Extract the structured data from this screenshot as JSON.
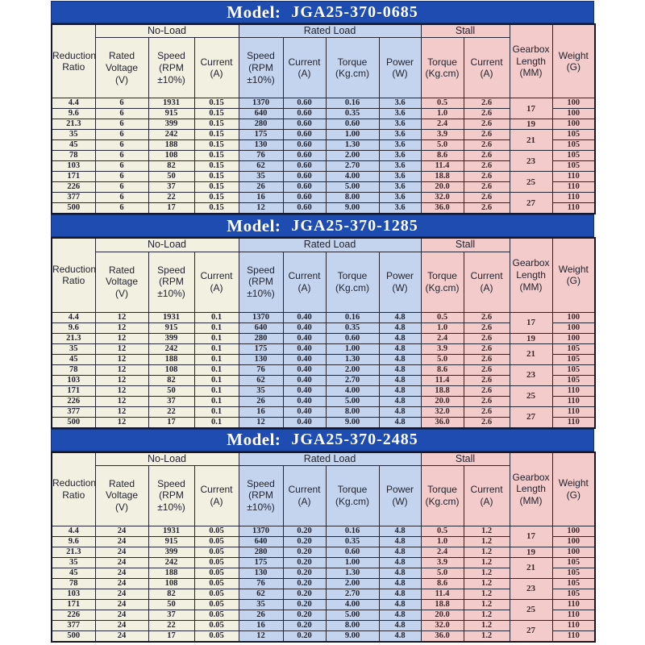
{
  "colors": {
    "title_bar_blue": "#1f4cb0",
    "title_text": "#ffffff",
    "no_load_cream": "#f1f0e1",
    "rated_load_blue": "#c4d4ee",
    "stall_pink": "#f3cbca",
    "grid_border": "#262633",
    "data_text": "#23242f"
  },
  "header": {
    "reduction_ratio": "Reduction\nRatio",
    "groups": {
      "no_load": "No-Load",
      "rated_load": "Rated Load",
      "stall": "Stall"
    },
    "sub": {
      "rated_voltage": "Rated\nVoltage\n(V)",
      "speed": "Speed\n(RPM\n±10%)",
      "current": "Current\n(A)",
      "torque": "Torque\n(Kg.cm)",
      "power": "Power\n(W)"
    },
    "gearbox": "Gearbox\nLength\n(MM)",
    "weight": "Weight\n(G)"
  },
  "gearbox_spans": [
    {
      "value": "17",
      "rows": 2
    },
    {
      "value": "19",
      "rows": 1
    },
    {
      "value": "21",
      "rows": 2
    },
    {
      "value": "23",
      "rows": 2
    },
    {
      "value": "25",
      "rows": 2
    },
    {
      "value": "27",
      "rows": 2
    }
  ],
  "tables": [
    {
      "model_label": "Model:",
      "model_number": "JGA25-370-0685",
      "rows": [
        [
          "4.4",
          "6",
          "1931",
          "0.15",
          "1370",
          "0.60",
          "0.16",
          "3.6",
          "0.5",
          "2.6",
          "100"
        ],
        [
          "9.6",
          "6",
          "915",
          "0.15",
          "640",
          "0.60",
          "0.35",
          "3.6",
          "1.0",
          "2.6",
          "100"
        ],
        [
          "21.3",
          "6",
          "399",
          "0.15",
          "280",
          "0.60",
          "0.60",
          "3.6",
          "2.4",
          "2.6",
          "100"
        ],
        [
          "35",
          "6",
          "242",
          "0.15",
          "175",
          "0.60",
          "1.00",
          "3.6",
          "3.9",
          "2.6",
          "105"
        ],
        [
          "45",
          "6",
          "188",
          "0.15",
          "130",
          "0.60",
          "1.30",
          "3.6",
          "5.0",
          "2.6",
          "105"
        ],
        [
          "78",
          "6",
          "108",
          "0.15",
          "76",
          "0.60",
          "2.00",
          "3.6",
          "8.6",
          "2.6",
          "105"
        ],
        [
          "103",
          "6",
          "82",
          "0.15",
          "62",
          "0.60",
          "2.70",
          "3.6",
          "11.4",
          "2.6",
          "105"
        ],
        [
          "171",
          "6",
          "50",
          "0.15",
          "35",
          "0.60",
          "4.00",
          "3.6",
          "18.8",
          "2.6",
          "110"
        ],
        [
          "226",
          "6",
          "37",
          "0.15",
          "26",
          "0.60",
          "5.00",
          "3.6",
          "20.0",
          "2.6",
          "110"
        ],
        [
          "377",
          "6",
          "22",
          "0.15",
          "16",
          "0.60",
          "8.00",
          "3.6",
          "32.0",
          "2.6",
          "110"
        ],
        [
          "500",
          "6",
          "17",
          "0.15",
          "12",
          "0.60",
          "9.00",
          "3.6",
          "36.0",
          "2.6",
          "110"
        ]
      ]
    },
    {
      "model_label": "Model:",
      "model_number": "JGA25-370-1285",
      "rows": [
        [
          "4.4",
          "12",
          "1931",
          "0.1",
          "1370",
          "0.40",
          "0.16",
          "4.8",
          "0.5",
          "2.6",
          "100"
        ],
        [
          "9.6",
          "12",
          "915",
          "0.1",
          "640",
          "0.40",
          "0.35",
          "4.8",
          "1.0",
          "2.6",
          "100"
        ],
        [
          "21.3",
          "12",
          "399",
          "0.1",
          "280",
          "0.40",
          "0.60",
          "4.8",
          "2.4",
          "2.6",
          "100"
        ],
        [
          "35",
          "12",
          "242",
          "0.1",
          "175",
          "0.40",
          "1.00",
          "4.8",
          "3.9",
          "2.6",
          "105"
        ],
        [
          "45",
          "12",
          "188",
          "0.1",
          "130",
          "0.40",
          "1.30",
          "4.8",
          "5.0",
          "2.6",
          "105"
        ],
        [
          "78",
          "12",
          "108",
          "0.1",
          "76",
          "0.40",
          "2.00",
          "4.8",
          "8.6",
          "2.6",
          "105"
        ],
        [
          "103",
          "12",
          "82",
          "0.1",
          "62",
          "0.40",
          "2.70",
          "4.8",
          "11.4",
          "2.6",
          "105"
        ],
        [
          "171",
          "12",
          "50",
          "0.1",
          "35",
          "0.40",
          "4.00",
          "4.8",
          "18.8",
          "2.6",
          "110"
        ],
        [
          "226",
          "12",
          "37",
          "0.1",
          "26",
          "0.40",
          "5.00",
          "4.8",
          "20.0",
          "2.6",
          "110"
        ],
        [
          "377",
          "12",
          "22",
          "0.1",
          "16",
          "0.40",
          "8.00",
          "4.8",
          "32.0",
          "2.6",
          "110"
        ],
        [
          "500",
          "12",
          "17",
          "0.1",
          "12",
          "0.40",
          "9.00",
          "4.8",
          "36.0",
          "2.6",
          "110"
        ]
      ]
    },
    {
      "model_label": "Model:",
      "model_number": "JGA25-370-2485",
      "rows": [
        [
          "4.4",
          "24",
          "1931",
          "0.05",
          "1370",
          "0.20",
          "0.16",
          "4.8",
          "0.5",
          "1.2",
          "100"
        ],
        [
          "9.6",
          "24",
          "915",
          "0.05",
          "640",
          "0.20",
          "0.35",
          "4.8",
          "1.0",
          "1.2",
          "100"
        ],
        [
          "21.3",
          "24",
          "399",
          "0.05",
          "280",
          "0.20",
          "0.60",
          "4.8",
          "2.4",
          "1.2",
          "100"
        ],
        [
          "35",
          "24",
          "242",
          "0.05",
          "175",
          "0.20",
          "1.00",
          "4.8",
          "3.9",
          "1.2",
          "105"
        ],
        [
          "45",
          "24",
          "188",
          "0.05",
          "130",
          "0.20",
          "1.30",
          "4.8",
          "5.0",
          "1.2",
          "105"
        ],
        [
          "78",
          "24",
          "108",
          "0.05",
          "76",
          "0.20",
          "2.00",
          "4.8",
          "8.6",
          "1.2",
          "105"
        ],
        [
          "103",
          "24",
          "82",
          "0.05",
          "62",
          "0.20",
          "2.70",
          "4.8",
          "11.4",
          "1.2",
          "105"
        ],
        [
          "171",
          "24",
          "50",
          "0.05",
          "35",
          "0.20",
          "4.00",
          "4.8",
          "18.8",
          "1.2",
          "110"
        ],
        [
          "226",
          "24",
          "37",
          "0.05",
          "26",
          "0.20",
          "5.00",
          "4.8",
          "20.0",
          "1.2",
          "110"
        ],
        [
          "377",
          "24",
          "22",
          "0.05",
          "16",
          "0.20",
          "8.00",
          "4.8",
          "32.0",
          "1.2",
          "110"
        ],
        [
          "500",
          "24",
          "17",
          "0.05",
          "12",
          "0.20",
          "9.00",
          "4.8",
          "36.0",
          "1.2",
          "110"
        ]
      ]
    }
  ]
}
